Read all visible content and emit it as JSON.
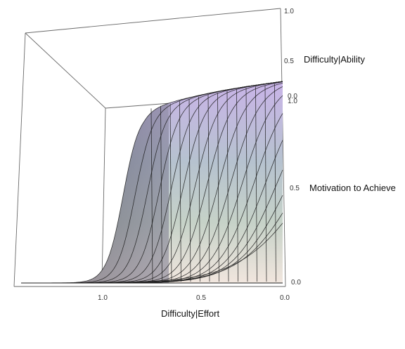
{
  "chart_data": {
    "type": "surface3d",
    "x_axis": {
      "label": "Difficulty|Effort",
      "ticks": [
        "1.0",
        "0.5",
        "0.0"
      ],
      "range": [
        1.5,
        0.0
      ]
    },
    "y_axis": {
      "label": "Difficulty|Ability",
      "ticks": [
        "1.0",
        "0.5",
        "0.0"
      ],
      "range": [
        0.0,
        1.0
      ]
    },
    "z_axis": {
      "label": "Motivation to Achieve",
      "ticks": [
        "1.0",
        "0.5",
        "0.0"
      ],
      "range": [
        0.0,
        1.0
      ]
    },
    "surface": {
      "description_function": "logistic sigmoid in Difficulty|Effort, steepness varying with Difficulty|Ability",
      "mesh_lines": 17,
      "colors": {
        "top": "#c7b3e6",
        "mid": "#bccfc4",
        "bottom": "#efe4dc",
        "dark_side": "#3e3a52"
      }
    },
    "grid": false,
    "legend": "none"
  }
}
